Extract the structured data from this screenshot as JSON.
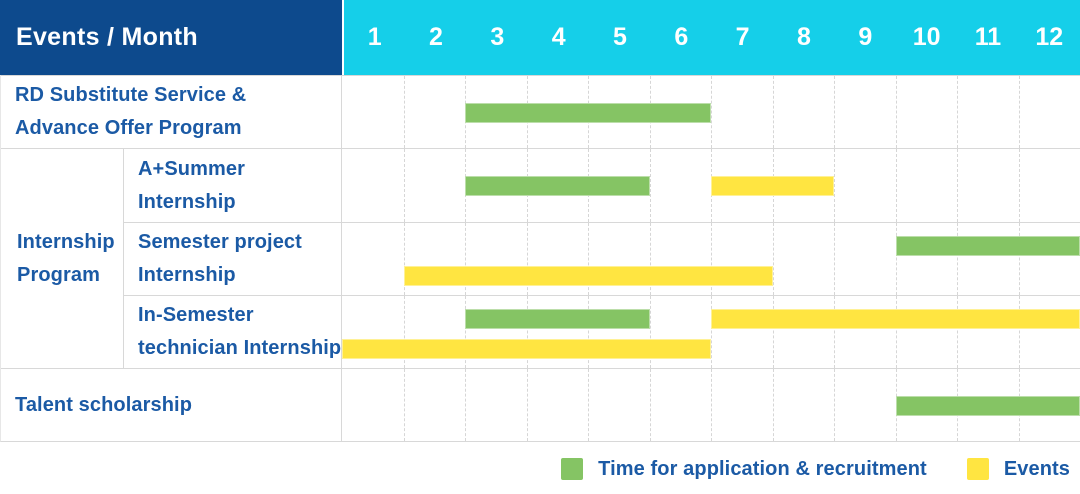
{
  "header": {
    "title": "Events / Month",
    "months": [
      "1",
      "2",
      "3",
      "4",
      "5",
      "6",
      "7",
      "8",
      "9",
      "10",
      "11",
      "12"
    ]
  },
  "colors": {
    "header_bg": "#0D4A8D",
    "month_strip_bg": "#15CFE9",
    "header_text": "#FFFFFF",
    "label_text": "#1B5AA5",
    "grid_line": "#D8D8D8",
    "green": "#85C464",
    "yellow": "#FFE541"
  },
  "chart_data": {
    "type": "bar",
    "subtype": "gantt-schedule",
    "title": "Events / Month",
    "x_axis": {
      "label": "Month",
      "ticks": [
        1,
        2,
        3,
        4,
        5,
        6,
        7,
        8,
        9,
        10,
        11,
        12
      ],
      "range": [
        1,
        12
      ]
    },
    "grid": "dashed vertical month separators",
    "legend_position": "bottom-right",
    "group_column": {
      "label": "Internship\nProgram"
    },
    "series": [
      {
        "id": "application",
        "label": "Time for application & recruitment",
        "color": "#85C464"
      },
      {
        "id": "events",
        "label": "Events",
        "color": "#FFE541"
      }
    ],
    "rows": [
      {
        "group": "",
        "label": "RD Substitute Service &\nAdvance Offer Program",
        "bars": [
          {
            "series": "application",
            "start_month": 3,
            "end_month": 6,
            "lane": 0
          }
        ]
      },
      {
        "group": "Internship Program",
        "label": "A+Summer\nInternship",
        "bars": [
          {
            "series": "application",
            "start_month": 3,
            "end_month": 5,
            "lane": 0
          },
          {
            "series": "events",
            "start_month": 7,
            "end_month": 8,
            "lane": 0
          }
        ]
      },
      {
        "group": "Internship Program",
        "label": "Semester project\nInternship",
        "bars": [
          {
            "series": "application",
            "start_month": 10,
            "end_month": 12,
            "lane": 0
          },
          {
            "series": "events",
            "start_month": 2,
            "end_month": 7,
            "lane": 1
          }
        ]
      },
      {
        "group": "Internship Program",
        "label": "In-Semester\ntechnician Internship",
        "bars": [
          {
            "series": "application",
            "start_month": 3,
            "end_month": 5,
            "lane": 0
          },
          {
            "series": "events",
            "start_month": 7,
            "end_month": 12,
            "lane": 0
          },
          {
            "series": "events",
            "start_month": 1,
            "end_month": 6,
            "lane": 1
          }
        ]
      },
      {
        "group": "",
        "label": "Talent scholarship",
        "bars": [
          {
            "series": "application",
            "start_month": 10,
            "end_month": 12,
            "lane": 0
          }
        ]
      }
    ]
  }
}
